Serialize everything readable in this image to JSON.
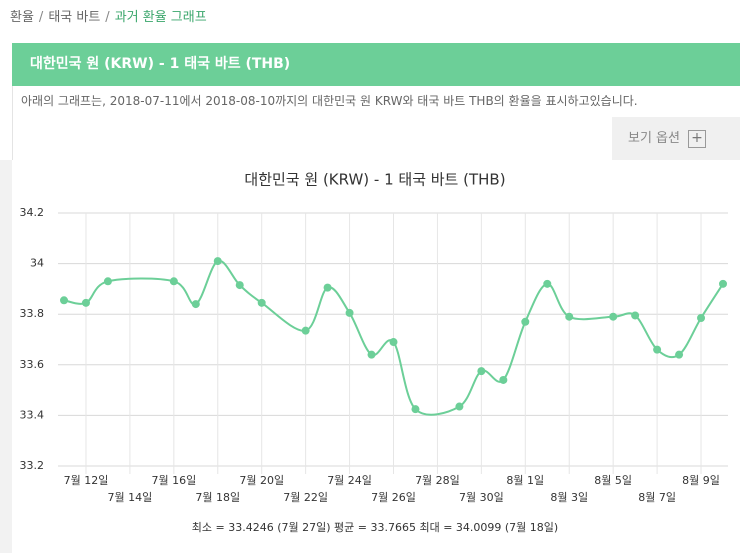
{
  "breadcrumb": [
    "환율",
    "태국 바트",
    "과거 환율 그래프"
  ],
  "breadcrumb_separator": "/",
  "header": {
    "title": "대한민국 원 (KRW) - 1 태국 바트 (THB)"
  },
  "description": "아래의 그래프는, 2018-07-11에서 2018-08-10까지의 대한민국 원 KRW와 태국 바트 THB의 환율을 표시하고있습니다.",
  "options_label": "보기 옵션",
  "chart_data": {
    "type": "line",
    "title": "대한민국 원 (KRW) - 1 태국 바트 (THB)",
    "x": [
      "2018-07-11",
      "2018-07-12",
      "2018-07-13",
      "2018-07-16",
      "2018-07-17",
      "2018-07-18",
      "2018-07-19",
      "2018-07-20",
      "2018-07-22",
      "2018-07-23",
      "2018-07-24",
      "2018-07-25",
      "2018-07-26",
      "2018-07-27",
      "2018-07-29",
      "2018-07-30",
      "2018-07-31",
      "2018-08-01",
      "2018-08-02",
      "2018-08-03",
      "2018-08-05",
      "2018-08-06",
      "2018-08-07",
      "2018-08-08",
      "2018-08-09",
      "2018-08-10"
    ],
    "values": [
      33.855,
      33.845,
      33.93,
      33.93,
      33.84,
      34.0099,
      33.915,
      33.845,
      33.735,
      33.905,
      33.805,
      33.64,
      33.69,
      33.4246,
      33.435,
      33.575,
      33.54,
      33.77,
      33.92,
      33.79,
      33.79,
      33.795,
      33.66,
      33.64,
      33.785,
      33.92
    ],
    "color": "#6ccf98",
    "xlim": [
      "2018-07-11",
      "2018-08-10"
    ],
    "xticks": [
      {
        "value": "2018-07-12",
        "label": "7월 12일"
      },
      {
        "value": "2018-07-14",
        "label": "7월 14일"
      },
      {
        "value": "2018-07-16",
        "label": "7월 16일"
      },
      {
        "value": "2018-07-18",
        "label": "7월 18일"
      },
      {
        "value": "2018-07-20",
        "label": "7월 20일"
      },
      {
        "value": "2018-07-22",
        "label": "7월 22일"
      },
      {
        "value": "2018-07-24",
        "label": "7월 24일"
      },
      {
        "value": "2018-07-26",
        "label": "7월 26일"
      },
      {
        "value": "2018-07-28",
        "label": "7월 28일"
      },
      {
        "value": "2018-07-30",
        "label": "7월 30일"
      },
      {
        "value": "2018-08-01",
        "label": "8월 1일"
      },
      {
        "value": "2018-08-03",
        "label": "8월 3일"
      },
      {
        "value": "2018-08-05",
        "label": "8월 5일"
      },
      {
        "value": "2018-08-07",
        "label": "8월 7일"
      },
      {
        "value": "2018-08-09",
        "label": "8월 9일"
      }
    ],
    "ylim": [
      33.2,
      34.2
    ],
    "yticks": [
      33.2,
      33.4,
      33.6,
      33.8,
      34,
      34.2
    ],
    "grid": true,
    "summary": "최소 = 33.4246 (7월 27일) 평균 = 33.7665 최대 = 34.0099 (7월 18일)"
  }
}
